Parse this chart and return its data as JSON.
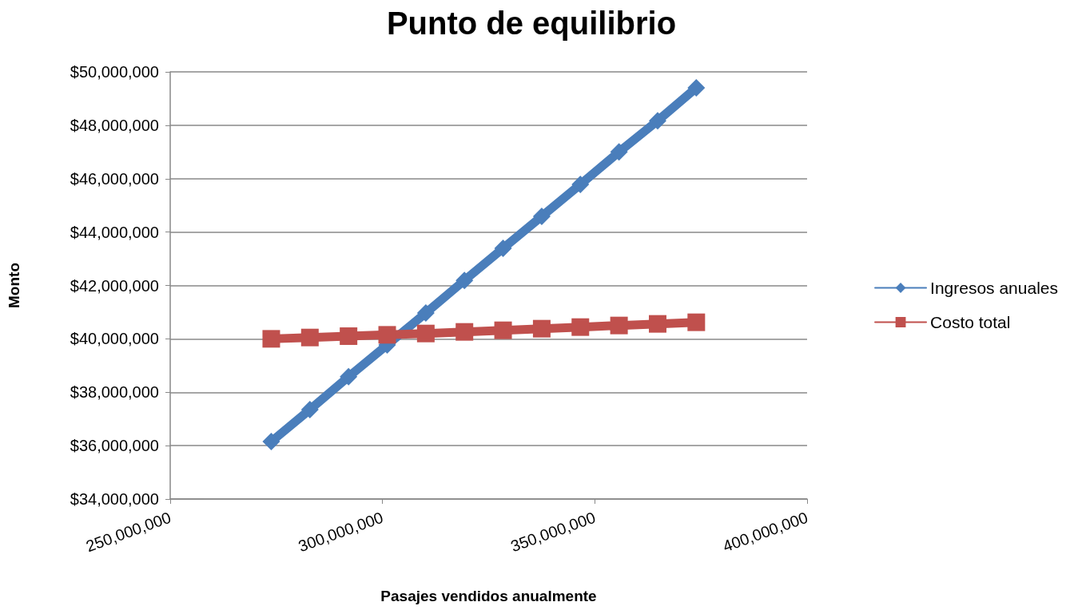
{
  "chart_data": {
    "type": "line",
    "title": "Punto de equilibrio",
    "xlabel": "Pasajes vendidos anualmente",
    "ylabel": "Monto",
    "x": [
      273800000,
      282900000,
      292000000,
      301100000,
      310200000,
      319300000,
      328400000,
      337500000,
      346600000,
      355700000,
      364800000,
      373900000
    ],
    "series": [
      {
        "name": "Ingresos anuales",
        "color": "#4a7ebb",
        "marker": "diamond",
        "values": [
          36150000,
          37350000,
          38580000,
          39770000,
          40970000,
          42190000,
          43390000,
          44590000,
          45780000,
          47000000,
          48170000,
          49400000
        ]
      },
      {
        "name": "Costo total",
        "color": "#c0504d",
        "marker": "square",
        "values": [
          40000000,
          40050000,
          40100000,
          40150000,
          40200000,
          40260000,
          40320000,
          40380000,
          40440000,
          40500000,
          40560000,
          40620000
        ]
      }
    ],
    "xlim": [
      250000000,
      400000000
    ],
    "xticks": [
      {
        "value": 250000000,
        "label": "250,000,000"
      },
      {
        "value": 300000000,
        "label": "300,000,000"
      },
      {
        "value": 350000000,
        "label": "350,000,000"
      },
      {
        "value": 400000000,
        "label": "400,000,000"
      }
    ],
    "ylim": [
      34000000,
      50000000
    ],
    "yticks": [
      {
        "value": 34000000,
        "label": "$34,000,000"
      },
      {
        "value": 36000000,
        "label": "$36,000,000"
      },
      {
        "value": 38000000,
        "label": "$38,000,000"
      },
      {
        "value": 40000000,
        "label": "$40,000,000"
      },
      {
        "value": 42000000,
        "label": "$42,000,000"
      },
      {
        "value": 44000000,
        "label": "$44,000,000"
      },
      {
        "value": 46000000,
        "label": "$46,000,000"
      },
      {
        "value": 48000000,
        "label": "$48,000,000"
      },
      {
        "value": 50000000,
        "label": "$50,000,000"
      }
    ],
    "grid": "y",
    "legend": "right",
    "line_style": "solid"
  }
}
